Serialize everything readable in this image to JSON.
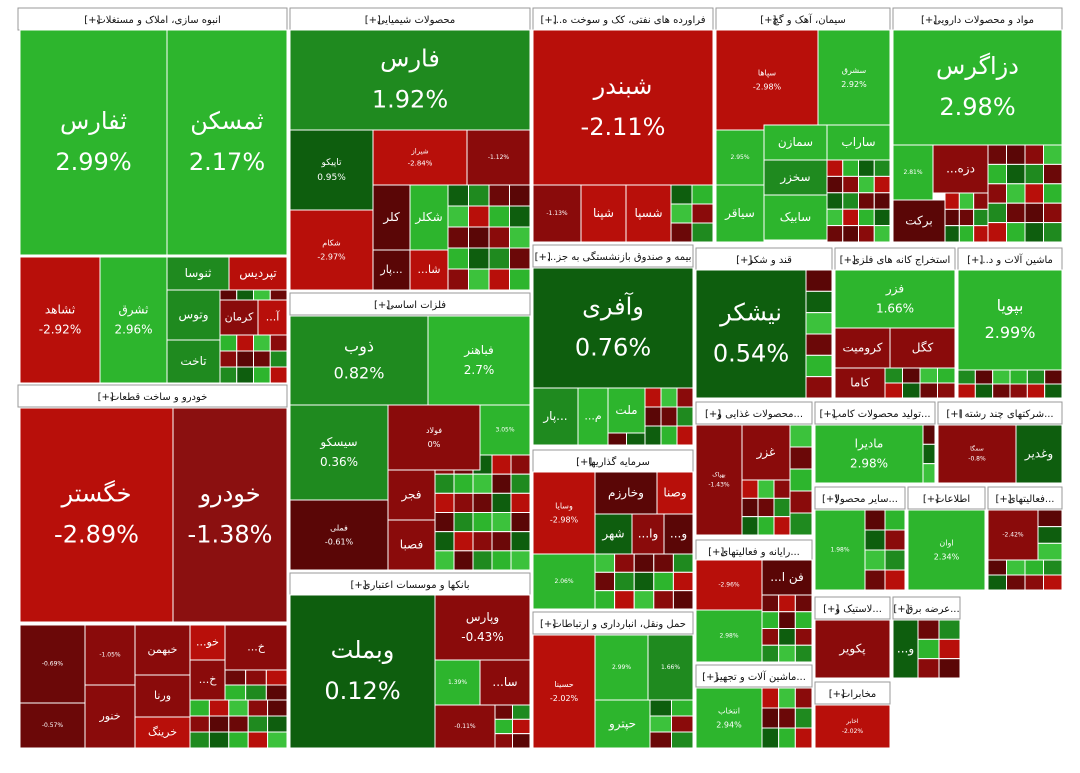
{
  "expand_label": "[+]",
  "sectors": [
    {
      "title": "انبوه سازی، املاک و مستغلات",
      "tiles": [
        {
          "name": "ثفارس",
          "change": "2.99%"
        },
        {
          "name": "ثمسکن",
          "change": "2.17%"
        },
        {
          "name": "ثشاهد",
          "change": "-2.92%"
        },
        {
          "name": "ثشرق",
          "change": "2.96%"
        },
        {
          "name": "ثنوسا"
        },
        {
          "name": "تپردیس"
        },
        {
          "name": "وتوس"
        },
        {
          "name": "کرمان"
        },
        {
          "name": "آ..."
        },
        {
          "name": "تاخت"
        }
      ]
    },
    {
      "title": "خودرو و ساخت قطعات",
      "tiles": [
        {
          "name": "خگستر",
          "change": "-2.89%"
        },
        {
          "name": "خودرو",
          "change": "-1.38%"
        },
        {
          "change": "-0.69%"
        },
        {
          "change": "-1.05%"
        },
        {
          "name": "خبهمن"
        },
        {
          "name": "خو..."
        },
        {
          "name": "خ..."
        },
        {
          "name": "ورنا"
        },
        {
          "name": "خ..."
        },
        {
          "change": "-0.57%"
        },
        {
          "name": "خنور"
        },
        {
          "name": "خرینگ"
        }
      ]
    },
    {
      "title": "محصولات شیمیایی",
      "tiles": [
        {
          "name": "فارس",
          "change": "1.92%"
        },
        {
          "name": "تاپیکو",
          "change": "0.95%"
        },
        {
          "name": "شیراز",
          "change": "-2.84%"
        },
        {
          "change": "-1.12%"
        },
        {
          "name": "شکام",
          "change": "-2.97%"
        },
        {
          "name": "کلر"
        },
        {
          "name": "شکلر"
        },
        {
          "name": "...پار"
        },
        {
          "name": "شا..."
        }
      ]
    },
    {
      "title": "فلزات اساسی",
      "tiles": [
        {
          "name": "ذوب",
          "change": "0.82%"
        },
        {
          "name": "فباهنر",
          "change": "2.7%"
        },
        {
          "name": "سیسکو",
          "change": "0.36%"
        },
        {
          "name": "فولاد",
          "change": "0%"
        },
        {
          "change": "3.05%"
        },
        {
          "name": "فملی",
          "change": "-0.61%"
        },
        {
          "name": "فجر"
        },
        {
          "name": "فصبا"
        }
      ]
    },
    {
      "title": "بانکها و موسسات اعتباری",
      "tiles": [
        {
          "name": "وبملت",
          "change": "0.12%"
        },
        {
          "name": "وپارس",
          "change": "-0.43%"
        },
        {
          "change": "1.39%"
        },
        {
          "name": "سا..."
        },
        {
          "change": "-0.11%"
        }
      ]
    },
    {
      "title": "فراورده های نفتی، کک و سوخت ه...",
      "tiles": [
        {
          "name": "شبندر",
          "change": "-2.11%"
        },
        {
          "change": "-1.13%"
        },
        {
          "name": "شپنا"
        },
        {
          "name": "شسپا"
        }
      ]
    },
    {
      "title": "بیمه و صندوق بازنشستگی به جز...",
      "tiles": [
        {
          "name": "وآفری",
          "change": "0.76%"
        },
        {
          "name": "...پار"
        },
        {
          "name": "م..."
        },
        {
          "name": "ملت"
        }
      ]
    },
    {
      "title": "سرمایه گذاریها",
      "tiles": [
        {
          "name": "وسایا",
          "change": "-2.98%"
        },
        {
          "name": "وخارزم"
        },
        {
          "name": "وصنا"
        },
        {
          "name": "شهر"
        },
        {
          "name": "وا..."
        },
        {
          "name": "و..."
        },
        {
          "change": "2.06%"
        }
      ]
    },
    {
      "title": "حمل ونقل، انبارداری و ارتباطات",
      "tiles": [
        {
          "name": "حسینا",
          "change": "-2.02%"
        },
        {
          "change": "2.99%"
        },
        {
          "change": "1.66%"
        },
        {
          "name": "حپترو"
        }
      ]
    },
    {
      "title": "سیمان، آهک و گچ",
      "tiles": [
        {
          "name": "سپاها",
          "change": "-2.98%"
        },
        {
          "name": "سشرق",
          "change": "2.92%"
        },
        {
          "change": "2.95%"
        },
        {
          "name": "سمازن"
        },
        {
          "name": "ساراب"
        },
        {
          "name": "سخزر"
        },
        {
          "name": "سابیک"
        },
        {
          "name": "سیاقر"
        }
      ]
    },
    {
      "title": "مواد و محصولات دارویی",
      "tiles": [
        {
          "name": "دزاگرس",
          "change": "2.98%"
        },
        {
          "change": "2.81%"
        },
        {
          "name": "دزه..."
        },
        {
          "name": "برکت"
        }
      ]
    },
    {
      "title": "قند و شکر",
      "tiles": [
        {
          "name": "نیشکر",
          "change": "0.54%"
        }
      ]
    },
    {
      "title": "استخراج کانه های فلزی",
      "tiles": [
        {
          "name": "فزر",
          "change": "1.66%"
        },
        {
          "name": "کرومیت"
        },
        {
          "name": "کگل"
        },
        {
          "name": "کاما"
        }
      ]
    },
    {
      "title": "ماشین آلات و د...",
      "tiles": [
        {
          "name": "بپویا",
          "change": "2.99%"
        }
      ]
    },
    {
      "title": "...محصولات غذایی و",
      "tiles": [
        {
          "name": "بهپاک",
          "change": "-1.43%"
        },
        {
          "name": "غزر"
        }
      ]
    },
    {
      "title": "...تولید محصولات کامپ",
      "tiles": [
        {
          "name": "مادیرا",
          "change": "2.98%"
        }
      ]
    },
    {
      "title": "...شرکتهای چند رشته ا",
      "tiles": [
        {
          "name": "سمگا",
          "change": "-0.8%"
        },
        {
          "name": "وغدیر"
        }
      ]
    },
    {
      "title": "...رایانه و فعالیتهای",
      "tiles": [
        {
          "change": "-2.96%"
        },
        {
          "name": "فن ا..."
        },
        {
          "change": "2.98%"
        }
      ]
    },
    {
      "title": "...ماشین آلات و تجهیز",
      "tiles": [
        {
          "name": "انتخاب",
          "change": "2.94%"
        }
      ]
    },
    {
      "title": "...سایر محصولا",
      "tiles": [
        {
          "change": "1.98%"
        }
      ]
    },
    {
      "title": "اطلاعات",
      "tiles": [
        {
          "name": "اوان",
          "change": "2.34%"
        }
      ]
    },
    {
      "title": "...فعالیتهای",
      "tiles": [
        {
          "change": "-2.42%"
        }
      ]
    },
    {
      "title": "...لاستیک و",
      "tiles": [
        {
          "name": "پکویر"
        }
      ]
    },
    {
      "title": "...عرضه برق",
      "tiles": [
        {
          "name": "و..."
        }
      ]
    },
    {
      "title": "مخابرات",
      "tiles": [
        {
          "name": "اخابر",
          "change": "-2.02%"
        }
      ]
    }
  ]
}
